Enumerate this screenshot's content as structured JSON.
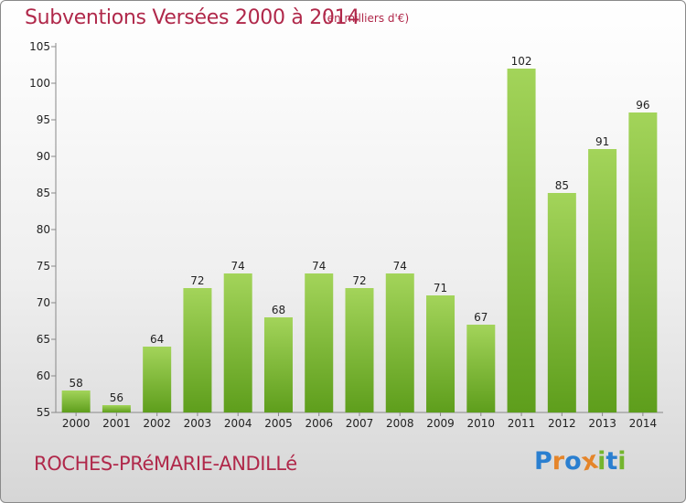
{
  "chart_data": {
    "type": "bar",
    "title": "Subventions Versées 2000 à 2014",
    "subtitle": "(en milliers d'€)",
    "categories": [
      "2000",
      "2001",
      "2002",
      "2003",
      "2004",
      "2005",
      "2006",
      "2007",
      "2008",
      "2009",
      "2010",
      "2011",
      "2012",
      "2013",
      "2014"
    ],
    "values": [
      58,
      56,
      64,
      72,
      74,
      68,
      74,
      72,
      74,
      71,
      67,
      102,
      85,
      91,
      96
    ],
    "ylim": [
      55,
      105
    ],
    "yticks": [
      55,
      60,
      65,
      70,
      75,
      80,
      85,
      90,
      95,
      100,
      105
    ],
    "grid": false,
    "bar_color_top": "#a3d45a",
    "bar_color_bottom": "#5e9e1c"
  },
  "commune": "ROCHES-PRéMARIE-ANDILLé",
  "logo": {
    "text": "Proxiti",
    "letters": [
      {
        "ch": "P",
        "color": "#2a7fd0"
      },
      {
        "ch": "r",
        "color": "#e5852a"
      },
      {
        "ch": "o",
        "color": "#2a7fd0"
      },
      {
        "ch": "x",
        "color": "#e5852a"
      },
      {
        "ch": "i",
        "color": "#74b52e"
      },
      {
        "ch": "t",
        "color": "#2a7fd0"
      },
      {
        "ch": "i",
        "color": "#74b52e"
      }
    ]
  }
}
